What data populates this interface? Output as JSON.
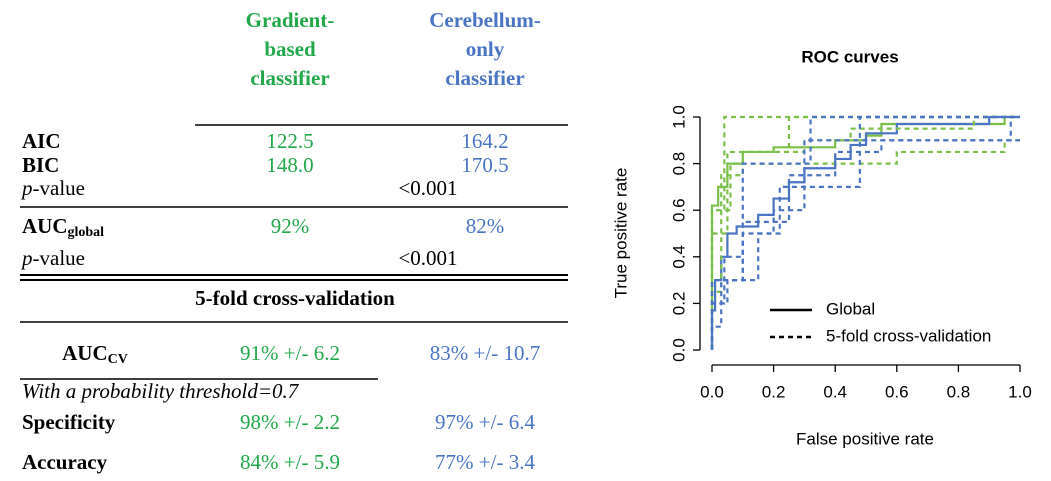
{
  "table": {
    "columns": [
      [
        "Gradient-",
        "based",
        "classifier"
      ],
      [
        "Cerebellum-",
        "only",
        "classifier"
      ]
    ],
    "column_colors": [
      "#22a84b",
      "#4a74c4"
    ],
    "rows": [
      {
        "label": [
          "AIC"
        ],
        "bold": true,
        "values": [
          "122.5",
          "164.2"
        ]
      },
      {
        "label": [
          "BIC"
        ],
        "bold": true,
        "values": [
          "148.0",
          "170.5"
        ]
      },
      {
        "label": [
          "p",
          "-value"
        ],
        "bold": false,
        "values": [
          "<0.001"
        ]
      },
      {
        "label": [
          "AUC",
          "global"
        ],
        "bold": true,
        "values": [
          "92%",
          "82%"
        ]
      },
      {
        "label": [
          "p",
          "-value"
        ],
        "bold": false,
        "values": [
          "<0.001"
        ]
      },
      {
        "section": "5-fold cross-validation"
      },
      {
        "label": [
          "AUC",
          "CV"
        ],
        "bold": true,
        "values": [
          "91% +/- 6.2",
          "83% +/- 10.7"
        ]
      },
      {
        "note": "With a probability threshold=0.7"
      },
      {
        "label": [
          "Specificity"
        ],
        "bold": true,
        "values": [
          "98% +/- 2.2",
          "97% +/- 6.4"
        ]
      },
      {
        "label": [
          "Accuracy"
        ],
        "bold": true,
        "values": [
          "84% +/- 5.9",
          "77% +/- 3.4"
        ]
      }
    ]
  },
  "chart_data": {
    "type": "line",
    "title": "ROC curves",
    "xlabel": "False positive rate",
    "ylabel": "True positive rate",
    "xlim": [
      0,
      1
    ],
    "ylim": [
      0,
      1
    ],
    "xticks": [
      {
        "value": 0,
        "label": "0.0"
      },
      0.2,
      0.4,
      0.6,
      0.8,
      {
        "value": 1,
        "label": "1.0"
      }
    ],
    "yticks": [
      {
        "value": 0,
        "label": "0.0"
      },
      0.2,
      0.4,
      0.6,
      0.8,
      {
        "value": 1,
        "label": "1.0"
      }
    ],
    "legend": [
      {
        "label": "Global",
        "style": "solid"
      },
      {
        "label": "5-fold cross-validation",
        "style": "dashed"
      }
    ],
    "series": [
      {
        "color": "#7cc04a",
        "style": "solid",
        "x": [
          0,
          0,
          0.02,
          0.02,
          0.05,
          0.05,
          0.1,
          0.1,
          0.2,
          0.2,
          0.4,
          0.4,
          0.5,
          0.5,
          0.55,
          0.55,
          0.95,
          0.95,
          1
        ],
        "values": [
          0,
          0.62,
          0.62,
          0.7,
          0.7,
          0.8,
          0.8,
          0.85,
          0.85,
          0.87,
          0.87,
          0.9,
          0.9,
          0.92,
          0.92,
          0.97,
          0.97,
          1,
          1
        ]
      },
      {
        "color": "#4a74c4",
        "style": "solid",
        "x": [
          0,
          0,
          0.01,
          0.01,
          0.03,
          0.03,
          0.05,
          0.05,
          0.08,
          0.08,
          0.15,
          0.15,
          0.2,
          0.2,
          0.25,
          0.25,
          0.3,
          0.3,
          0.4,
          0.4,
          0.45,
          0.45,
          0.5,
          0.5,
          0.6,
          0.6,
          0.9,
          0.9,
          1
        ],
        "values": [
          0,
          0.17,
          0.17,
          0.3,
          0.3,
          0.4,
          0.4,
          0.5,
          0.5,
          0.53,
          0.53,
          0.58,
          0.58,
          0.65,
          0.65,
          0.72,
          0.72,
          0.78,
          0.78,
          0.82,
          0.82,
          0.88,
          0.88,
          0.93,
          0.93,
          0.97,
          0.97,
          1,
          1
        ]
      },
      {
        "color": "#7cc04a",
        "style": "dashed",
        "x": [
          0,
          0,
          0.04,
          0.04,
          1
        ],
        "values": [
          0,
          0.6,
          0.6,
          1,
          1
        ]
      },
      {
        "color": "#7cc04a",
        "style": "dashed",
        "x": [
          0,
          0,
          0.03,
          0.03,
          0.1,
          0.1,
          0.25,
          0.25,
          1
        ],
        "values": [
          0,
          0.25,
          0.25,
          0.75,
          0.75,
          0.85,
          0.85,
          1,
          1
        ]
      },
      {
        "color": "#7cc04a",
        "style": "dashed",
        "x": [
          0,
          0,
          0.05,
          0.05,
          0.3,
          0.3,
          0.45,
          0.45,
          0.85,
          0.85,
          1
        ],
        "values": [
          0,
          0.5,
          0.5,
          0.85,
          0.85,
          0.9,
          0.9,
          0.95,
          0.95,
          1,
          1
        ]
      },
      {
        "color": "#7cc04a",
        "style": "dashed",
        "x": [
          0,
          0,
          0.06,
          0.06,
          0.6,
          0.6,
          0.95,
          0.95,
          1
        ],
        "values": [
          0,
          0.6,
          0.6,
          0.8,
          0.8,
          0.85,
          0.85,
          0.9,
          0.9
        ]
      },
      {
        "color": "#4a74c4",
        "style": "dashed",
        "x": [
          0,
          0,
          0.04,
          0.04,
          0.1,
          0.1,
          0.32,
          0.32,
          1
        ],
        "values": [
          0,
          0.2,
          0.2,
          0.4,
          0.4,
          0.8,
          0.8,
          1,
          1
        ]
      },
      {
        "color": "#4a74c4",
        "style": "dashed",
        "x": [
          0,
          0,
          0.03,
          0.03,
          0.15,
          0.15,
          0.22,
          0.22,
          0.48,
          0.48,
          1
        ],
        "values": [
          0,
          0.1,
          0.1,
          0.3,
          0.3,
          0.5,
          0.5,
          0.7,
          0.7,
          1,
          1
        ]
      },
      {
        "color": "#4a74c4",
        "style": "dashed",
        "x": [
          0,
          0,
          0.1,
          0.1,
          0.2,
          0.2,
          0.3,
          0.3,
          0.97,
          0.97,
          1
        ],
        "values": [
          0,
          0.3,
          0.3,
          0.5,
          0.5,
          0.6,
          0.6,
          0.9,
          0.9,
          1,
          1
        ]
      },
      {
        "color": "#4a74c4",
        "style": "dashed",
        "x": [
          0,
          0,
          0.05,
          0.05,
          0.1,
          0.1,
          0.25,
          0.25,
          0.4,
          0.4,
          0.55,
          0.55,
          1
        ],
        "values": [
          0,
          0.2,
          0.2,
          0.3,
          0.3,
          0.55,
          0.55,
          0.75,
          0.75,
          0.85,
          0.85,
          0.9,
          0.9
        ]
      }
    ]
  }
}
